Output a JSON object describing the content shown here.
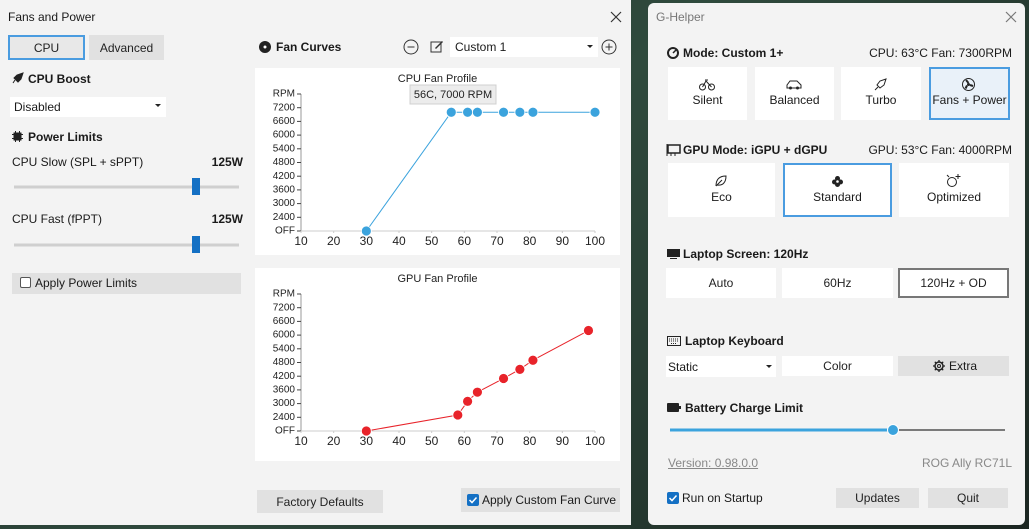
{
  "fans_window": {
    "title": "Fans and Power",
    "tabs": [
      "CPU",
      "Advanced"
    ],
    "cpu_boost": {
      "label": "CPU Boost",
      "value": "Disabled"
    },
    "power_limits": {
      "label": "Power Limits",
      "sliders": [
        {
          "label": "CPU Slow (SPL + sPPT)",
          "value": "125W"
        },
        {
          "label": "CPU Fast (fPPT)",
          "value": "125W"
        }
      ],
      "apply": "Apply Power Limits"
    },
    "fan_curves": {
      "label": "Fan Curves",
      "preset": "Custom 1"
    },
    "charts": [
      {
        "type": "line",
        "title": "CPU Fan Profile",
        "color": "#3ba3dd",
        "x": [
          30,
          56,
          61,
          64,
          72,
          77,
          81,
          100
        ],
        "values": [
          1800,
          7000,
          7000,
          7000,
          7000,
          7000,
          7000,
          7000
        ],
        "annotation": "56C, 7000 RPM",
        "xlim": [
          10,
          100
        ],
        "xticks": [
          10,
          20,
          30,
          40,
          50,
          60,
          70,
          80,
          90,
          100
        ],
        "ylim": [
          1800,
          7800
        ],
        "yticks": [
          {
            "value": 1800,
            "label": "OFF"
          },
          2400,
          3000,
          3600,
          4200,
          4800,
          5400,
          6000,
          6600,
          7200,
          {
            "value": 7800,
            "label": "RPM"
          }
        ]
      },
      {
        "type": "line",
        "title": "GPU Fan Profile",
        "color": "#e8232a",
        "x": [
          30,
          58,
          61,
          64,
          72,
          77,
          81,
          98
        ],
        "values": [
          1800,
          2500,
          3100,
          3500,
          4100,
          4500,
          4900,
          6200
        ],
        "xlim": [
          10,
          100
        ],
        "xticks": [
          10,
          20,
          30,
          40,
          50,
          60,
          70,
          80,
          90,
          100
        ],
        "ylim": [
          1800,
          7800
        ],
        "yticks": [
          {
            "value": 1800,
            "label": "OFF"
          },
          2400,
          3000,
          3600,
          4200,
          4800,
          5400,
          6000,
          6600,
          7200,
          {
            "value": 7800,
            "label": "RPM"
          }
        ]
      }
    ],
    "factory_defaults": "Factory Defaults",
    "apply_fan_curve": "Apply Custom Fan Curve"
  },
  "ghelper_window": {
    "title": "G-Helper",
    "mode": {
      "label": "Mode: Custom 1+",
      "status": "CPU: 63°C Fan: 7300RPM",
      "options": [
        "Silent",
        "Balanced",
        "Turbo",
        "Fans + Power"
      ]
    },
    "gpu": {
      "label": "GPU Mode: iGPU + dGPU",
      "status": "GPU: 53°C Fan: 4000RPM",
      "options": [
        "Eco",
        "Standard",
        "Optimized"
      ]
    },
    "screen": {
      "label": "Laptop Screen: 120Hz",
      "options": [
        "Auto",
        "60Hz",
        "120Hz + OD"
      ]
    },
    "keyboard": {
      "label": "Laptop Keyboard",
      "mode": "Static",
      "color": "Color",
      "extra": "Extra"
    },
    "battery": {
      "label": "Battery Charge Limit"
    },
    "version": "Version: 0.98.0.0",
    "model": "ROG Ally RC71L",
    "run_on_startup": "Run on Startup",
    "updates": "Updates",
    "quit": "Quit"
  }
}
